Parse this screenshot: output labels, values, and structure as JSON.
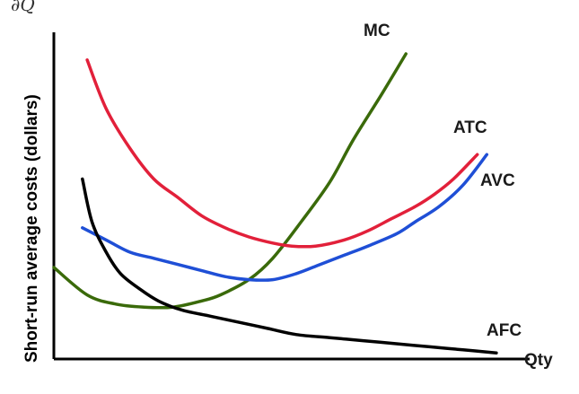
{
  "chart_data": {
    "type": "line",
    "top_fragment": "∂Q",
    "xlabel": "Qty",
    "ylabel": "Short-run average costs (dollars)",
    "xlim": [
      0,
      100
    ],
    "ylim": [
      0,
      100
    ],
    "grid": false,
    "legend": "inline labels",
    "series": [
      {
        "name": "MC",
        "color": "#3a6a0a",
        "x": [
          0,
          7,
          13,
          19,
          25,
          31,
          35,
          41,
          46,
          52,
          58,
          63,
          69,
          74
        ],
        "y": [
          30,
          21,
          18,
          17,
          17,
          19,
          21,
          26,
          33,
          45,
          58,
          72,
          87,
          100
        ]
      },
      {
        "name": "ATC",
        "color": "#e2203a",
        "x": [
          7,
          11,
          16,
          21,
          26,
          31,
          36,
          41,
          46,
          50,
          55,
          61,
          66,
          71,
          76,
          80,
          84,
          89
        ],
        "y": [
          98,
          82,
          69,
          59,
          53,
          47,
          43,
          40,
          38,
          37,
          37,
          39,
          42,
          46,
          50,
          54,
          59,
          67
        ]
      },
      {
        "name": "AVC",
        "color": "#1f4fd6",
        "x": [
          6,
          11,
          16,
          21,
          26,
          31,
          36,
          41,
          46,
          51,
          56,
          61,
          66,
          72,
          76,
          81,
          86,
          91
        ],
        "y": [
          43,
          39,
          35,
          33,
          31,
          29,
          27,
          26,
          26,
          28,
          31,
          34,
          37,
          41,
          45,
          50,
          57,
          67
        ]
      },
      {
        "name": "AFC",
        "color": "#000000",
        "x": [
          6,
          8,
          11,
          14,
          18,
          22,
          27,
          33,
          39,
          45,
          51,
          58,
          65,
          72,
          79,
          86,
          93
        ],
        "y": [
          59,
          45,
          35,
          28,
          23,
          19,
          16,
          14,
          12,
          10,
          8,
          7,
          6,
          5,
          4,
          3,
          2
        ]
      }
    ]
  }
}
